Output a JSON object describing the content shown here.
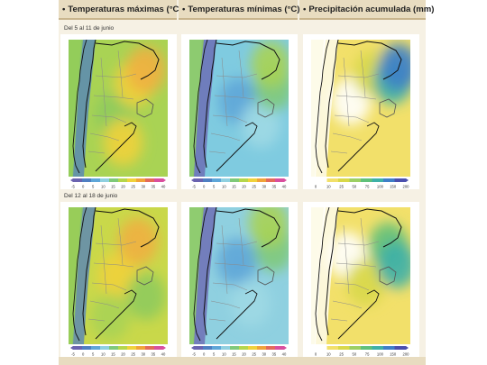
{
  "headers": [
    {
      "bullet": "•",
      "label": "Temperaturas máximas (°C)"
    },
    {
      "bullet": "•",
      "label": "Temperaturas mínimas (°C)"
    },
    {
      "bullet": "•",
      "label": "Precipitación acumulada (mm)"
    }
  ],
  "periods": [
    "Del 5 al 11 de junio",
    "Del 12 al 18 de junio"
  ],
  "legends": {
    "temperature": {
      "ticks": [
        "-5",
        "0",
        "5",
        "10",
        "15",
        "20",
        "25",
        "30",
        "35",
        "40"
      ],
      "colors": [
        "#6a63b0",
        "#4f7fc2",
        "#5ea6d8",
        "#8fd0e0",
        "#7fc97a",
        "#b5d64c",
        "#f0d23c",
        "#f0a33a",
        "#e36a5a",
        "#d94f9e"
      ]
    },
    "precipitation": {
      "ticks": [
        "0",
        "10",
        "25",
        "50",
        "75",
        "100",
        "150",
        "200"
      ],
      "colors": [
        "#ffffff",
        "#f2e06a",
        "#d8d84a",
        "#9ccf63",
        "#5fc07a",
        "#3eb0a8",
        "#3f7fc8",
        "#4a4fae"
      ]
    }
  },
  "maps": [
    {
      "id": "max-week1",
      "variable": "max",
      "base": "#a9d354",
      "features": [
        [
          "#8fcb5c",
          0.46,
          0.55
        ],
        [
          "#f0d23c",
          0.66,
          0.32
        ],
        [
          "#f0b040",
          0.78,
          0.22
        ],
        [
          "#f0d23c",
          0.55,
          0.75
        ]
      ]
    },
    {
      "id": "min-week1",
      "variable": "min",
      "base": "#7fcbe0",
      "features": [
        [
          "#5ea6d8",
          0.5,
          0.45
        ],
        [
          "#9fd9e4",
          0.72,
          0.62
        ],
        [
          "#7fc97a",
          0.85,
          0.35
        ],
        [
          "#a9d354",
          0.82,
          0.18
        ]
      ]
    },
    {
      "id": "pp-week1",
      "variable": "pp",
      "base": "#f2e06a",
      "features": [
        [
          "#ffffff",
          0.4,
          0.45
        ],
        [
          "#d8d84a",
          0.62,
          0.25
        ],
        [
          "#3eb0a8",
          0.82,
          0.3
        ],
        [
          "#3f7fc8",
          0.88,
          0.2
        ]
      ]
    },
    {
      "id": "max-week2",
      "variable": "max",
      "base": "#c9d84a",
      "features": [
        [
          "#f0d23c",
          0.5,
          0.5
        ],
        [
          "#f0b040",
          0.7,
          0.25
        ],
        [
          "#a9d354",
          0.42,
          0.8
        ],
        [
          "#8fcb5c",
          0.78,
          0.65
        ]
      ]
    },
    {
      "id": "min-week2",
      "variable": "min",
      "base": "#8fd0e0",
      "features": [
        [
          "#5ea6d8",
          0.48,
          0.4
        ],
        [
          "#9fd9e4",
          0.62,
          0.7
        ],
        [
          "#7fc97a",
          0.85,
          0.3
        ],
        [
          "#a9d354",
          0.8,
          0.12
        ]
      ]
    },
    {
      "id": "pp-week2",
      "variable": "pp",
      "base": "#f2e06a",
      "features": [
        [
          "#ffffff",
          0.36,
          0.35
        ],
        [
          "#d8d84a",
          0.55,
          0.55
        ],
        [
          "#5fc07a",
          0.78,
          0.28
        ],
        [
          "#3eb0a8",
          0.86,
          0.42
        ]
      ]
    }
  ]
}
